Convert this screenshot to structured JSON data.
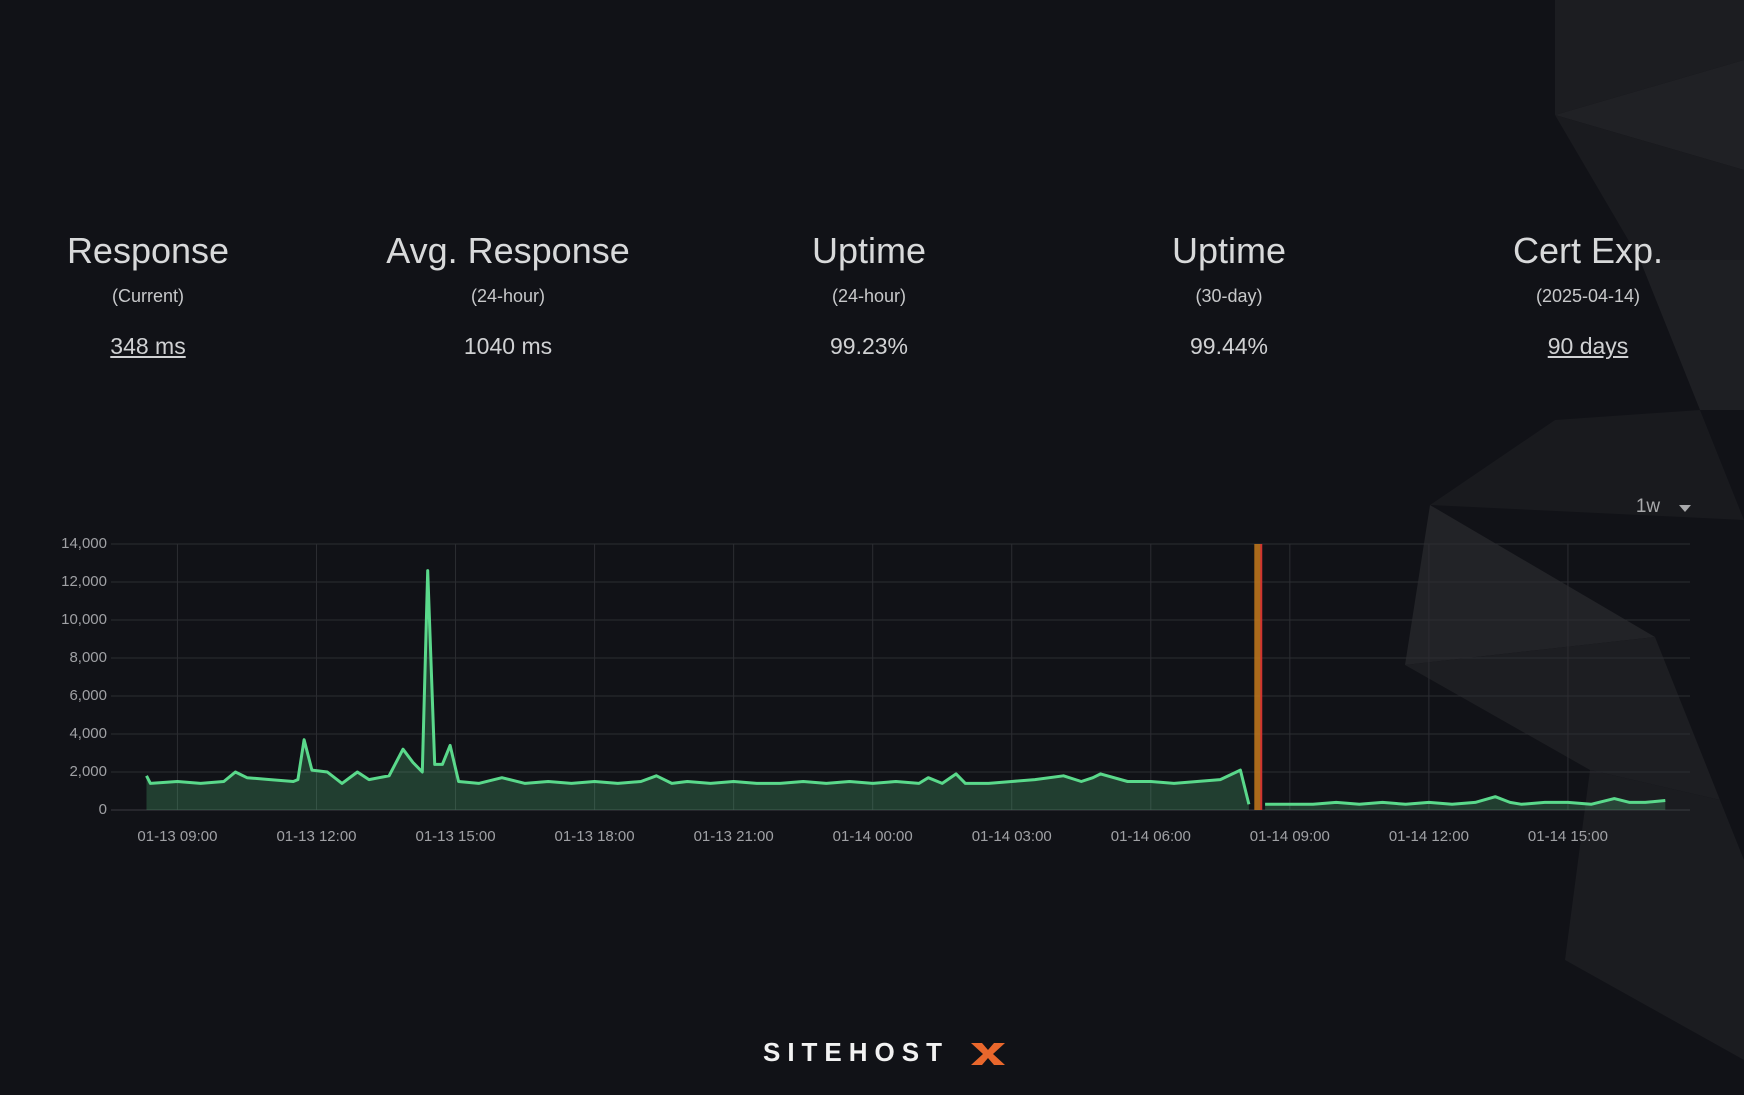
{
  "stats": [
    {
      "title": "Response",
      "subtitle": "(Current)",
      "value": "348 ms",
      "link": true
    },
    {
      "title": "Avg. Response",
      "subtitle": "(24-hour)",
      "value": "1040 ms",
      "link": false
    },
    {
      "title": "Uptime",
      "subtitle": "(24-hour)",
      "value": "99.23%",
      "link": false
    },
    {
      "title": "Uptime",
      "subtitle": "(30-day)",
      "value": "99.44%",
      "link": false
    },
    {
      "title": "Cert Exp.",
      "subtitle": "(2025-04-14)",
      "value": "90 days",
      "link": true
    }
  ],
  "range_selector": "1w",
  "chart_data": {
    "type": "area",
    "color": "#5ad98b",
    "grid": true,
    "xlim": [
      "01-13 07:34",
      "01-14 17:38"
    ],
    "xticks": [
      "01-13 09:00",
      "01-13 12:00",
      "01-13 15:00",
      "01-13 18:00",
      "01-13 21:00",
      "01-14 00:00",
      "01-14 03:00",
      "01-14 06:00",
      "01-14 09:00",
      "01-14 12:00",
      "01-14 15:00"
    ],
    "ylim": [
      0,
      14000
    ],
    "yticks": [
      0,
      {
        "value": 2000,
        "label": "2,000"
      },
      {
        "value": 4000,
        "label": "4,000"
      },
      {
        "value": 6000,
        "label": "6,000"
      },
      {
        "value": 8000,
        "label": "8,000"
      },
      {
        "value": 10000,
        "label": "10,000"
      },
      {
        "value": 12000,
        "label": "12,000"
      },
      {
        "value": 14000,
        "label": "14,000"
      }
    ],
    "outages": [
      {
        "start": "01-14 08:14",
        "end": "01-14 08:23"
      }
    ],
    "x": [
      "01-13 08:20",
      "01-13 08:25",
      "01-13 09:00",
      "01-13 09:30",
      "01-13 10:00",
      "01-13 10:15",
      "01-13 10:30",
      "01-13 11:00",
      "01-13 11:30",
      "01-13 11:36",
      "01-13 11:44",
      "01-13 11:54",
      "01-13 12:14",
      "01-13 12:33",
      "01-13 12:53",
      "01-13 13:08",
      "01-13 13:34",
      "01-13 13:52",
      "01-13 14:05",
      "01-13 14:17",
      "01-13 14:24",
      "01-13 14:33",
      "01-13 14:43",
      "01-13 14:53",
      "01-13 15:04",
      "01-13 15:30",
      "01-13 16:00",
      "01-13 16:30",
      "01-13 17:00",
      "01-13 17:30",
      "01-13 18:00",
      "01-13 18:30",
      "01-13 19:00",
      "01-13 19:20",
      "01-13 19:40",
      "01-13 20:00",
      "01-13 20:30",
      "01-13 21:00",
      "01-13 21:30",
      "01-13 22:00",
      "01-13 22:30",
      "01-13 23:00",
      "01-13 23:30",
      "01-14 00:00",
      "01-14 00:30",
      "01-14 01:00",
      "01-14 01:12",
      "01-14 01:30",
      "01-14 01:48",
      "01-14 02:00",
      "01-14 02:30",
      "01-14 03:00",
      "01-14 03:30",
      "01-14 04:07",
      "01-14 04:30",
      "01-14 04:45",
      "01-14 04:55",
      "01-14 05:30",
      "01-14 06:00",
      "01-14 06:30",
      "01-14 07:00",
      "01-14 07:30",
      "01-14 07:56",
      "01-14 08:07",
      "01-14 08:15",
      "01-14 08:28",
      "01-14 09:00",
      "01-14 09:30",
      "01-14 10:00",
      "01-14 10:30",
      "01-14 11:00",
      "01-14 11:30",
      "01-14 12:00",
      "01-14 12:30",
      "01-14 13:00",
      "01-14 13:26",
      "01-14 13:45",
      "01-14 14:00",
      "01-14 14:30",
      "01-14 15:00",
      "01-14 15:30",
      "01-14 16:00",
      "01-14 16:20",
      "01-14 16:40",
      "01-14 17:06"
    ],
    "values": [
      1800,
      1400,
      1500,
      1400,
      1500,
      2000,
      1700,
      1600,
      1500,
      1600,
      3700,
      2100,
      2000,
      1400,
      2000,
      1600,
      1800,
      3200,
      2500,
      2000,
      12600,
      2400,
      2400,
      3400,
      1500,
      1400,
      1700,
      1400,
      1500,
      1400,
      1500,
      1400,
      1500,
      1800,
      1400,
      1500,
      1400,
      1500,
      1400,
      1400,
      1500,
      1400,
      1500,
      1400,
      1500,
      1400,
      1700,
      1400,
      1900,
      1400,
      1400,
      1500,
      1600,
      1800,
      1500,
      1700,
      1900,
      1500,
      1500,
      1400,
      1500,
      1600,
      2100,
      300,
      null,
      300,
      300,
      300,
      400,
      300,
      400,
      300,
      400,
      300,
      400,
      700,
      400,
      300,
      400,
      400,
      300,
      600,
      400,
      400,
      500
    ]
  },
  "footer": {
    "brand": "SITEHOST"
  }
}
